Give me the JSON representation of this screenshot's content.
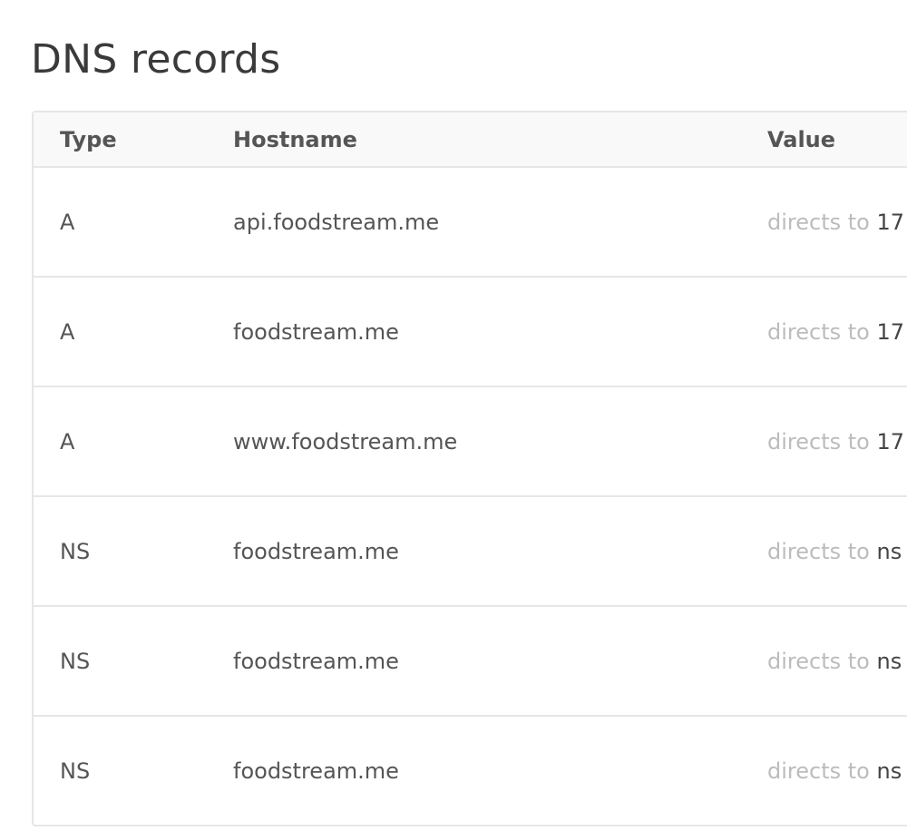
{
  "header": {
    "title": "DNS records"
  },
  "table": {
    "columns": [
      "Type",
      "Hostname",
      "Value"
    ],
    "rows": [
      {
        "type": "A",
        "hostname": "api.foodstream.me",
        "value_prefix": "directs to",
        "value": "17"
      },
      {
        "type": "A",
        "hostname": "foodstream.me",
        "value_prefix": "directs to",
        "value": "17"
      },
      {
        "type": "A",
        "hostname": "www.foodstream.me",
        "value_prefix": "directs to",
        "value": "17"
      },
      {
        "type": "NS",
        "hostname": "foodstream.me",
        "value_prefix": "directs to",
        "value": "ns"
      },
      {
        "type": "NS",
        "hostname": "foodstream.me",
        "value_prefix": "directs to",
        "value": "ns"
      },
      {
        "type": "NS",
        "hostname": "foodstream.me",
        "value_prefix": "directs to",
        "value": "ns"
      }
    ]
  }
}
